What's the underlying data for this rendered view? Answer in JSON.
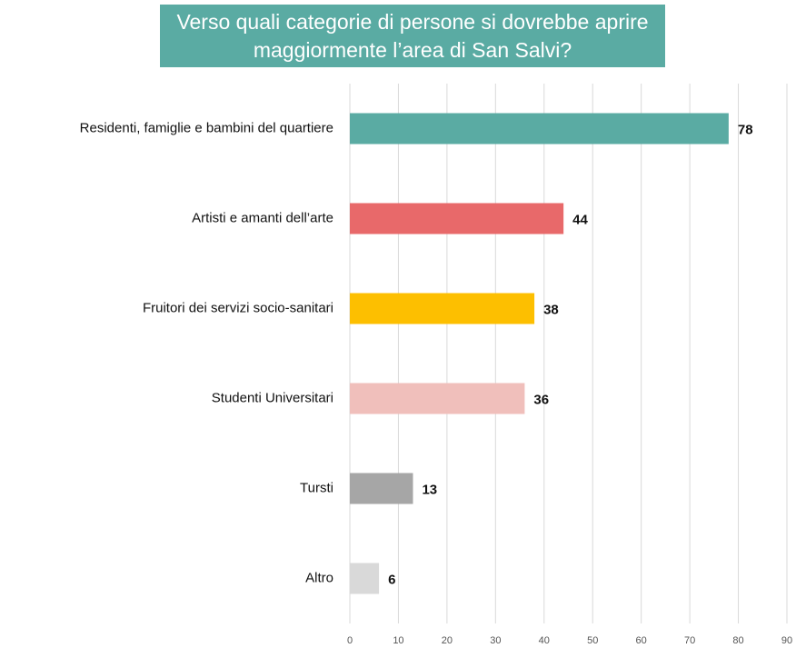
{
  "chart_data": {
    "type": "bar",
    "orientation": "horizontal",
    "title": "Verso quali categorie di persone si dovrebbe aprire maggiormente l’area di San Salvi?",
    "categories": [
      "Residenti, famiglie e bambini del quartiere",
      "Artisti e amanti dell’arte",
      "Fruitori dei servizi socio-sanitari",
      "Studenti Universitari",
      "Tursti",
      "Altro"
    ],
    "values": [
      78,
      44,
      38,
      36,
      13,
      6
    ],
    "colors": [
      "#5aaba3",
      "#e8696a",
      "#fdbf00",
      "#f0bfbb",
      "#a6a6a6",
      "#d9d9d9"
    ],
    "xlim": [
      0,
      90
    ],
    "xticks": [
      0,
      10,
      20,
      30,
      40,
      50,
      60,
      70,
      80,
      90
    ],
    "grid": true
  }
}
